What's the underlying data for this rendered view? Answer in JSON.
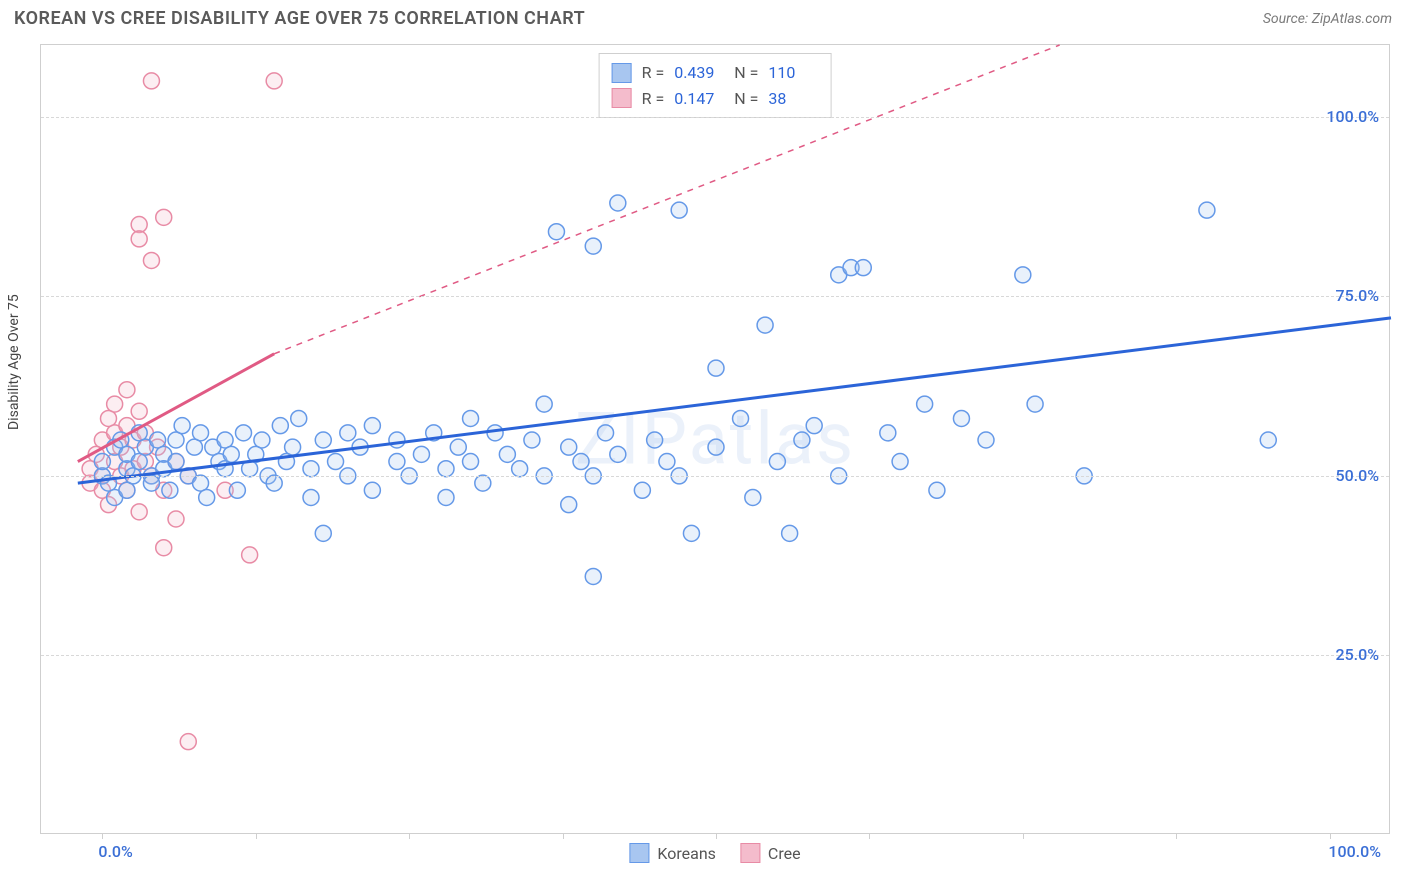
{
  "header": {
    "title": "KOREAN VS CREE DISABILITY AGE OVER 75 CORRELATION CHART",
    "source": "Source: ZipAtlas.com"
  },
  "chart": {
    "type": "scatter",
    "ylabel": "Disability Age Over 75",
    "watermark": "ZIPatlas",
    "background_color": "#ffffff",
    "grid_color": "#d8d8d8",
    "border_color": "#cfcfcf",
    "xlim": [
      -5,
      105
    ],
    "ylim": [
      0,
      110
    ],
    "ytick_labels": [
      "25.0%",
      "50.0%",
      "75.0%",
      "100.0%"
    ],
    "ytick_values": [
      25,
      50,
      75,
      100
    ],
    "xtick_labels": [
      "0.0%",
      "100.0%"
    ],
    "xtick_positions": [
      0,
      100
    ],
    "xtick_marks": [
      0,
      12.5,
      25,
      37.5,
      50,
      62.5,
      75,
      87.5,
      100
    ],
    "marker_radius": 8,
    "marker_stroke_width": 1.5,
    "marker_fill_opacity": 0.25,
    "trend_line_width": 3,
    "dashed_width": 1.5,
    "series": [
      {
        "name": "Koreans",
        "color_stroke": "#6599e8",
        "color_fill": "#a8c6f0",
        "line_color": "#2b64d8",
        "R": "0.439",
        "N": "110",
        "trend": {
          "x1": -2,
          "y1": 49,
          "x2": 105,
          "y2": 72
        },
        "dashed": null,
        "points": [
          [
            0,
            50
          ],
          [
            0,
            52
          ],
          [
            0.5,
            49
          ],
          [
            1,
            54
          ],
          [
            1,
            47
          ],
          [
            1.5,
            55
          ],
          [
            2,
            51
          ],
          [
            2,
            53
          ],
          [
            2,
            48
          ],
          [
            2.5,
            50
          ],
          [
            3,
            56
          ],
          [
            3,
            52
          ],
          [
            3.5,
            54
          ],
          [
            4,
            50
          ],
          [
            4,
            49
          ],
          [
            4.5,
            55
          ],
          [
            5,
            53
          ],
          [
            5,
            51
          ],
          [
            5.5,
            48
          ],
          [
            6,
            55
          ],
          [
            6,
            52
          ],
          [
            6.5,
            57
          ],
          [
            7,
            50
          ],
          [
            7.5,
            54
          ],
          [
            8,
            56
          ],
          [
            8,
            49
          ],
          [
            8.5,
            47
          ],
          [
            9,
            54
          ],
          [
            9.5,
            52
          ],
          [
            10,
            51
          ],
          [
            10,
            55
          ],
          [
            10.5,
            53
          ],
          [
            11,
            48
          ],
          [
            11.5,
            56
          ],
          [
            12,
            51
          ],
          [
            12.5,
            53
          ],
          [
            13,
            55
          ],
          [
            13.5,
            50
          ],
          [
            14,
            49
          ],
          [
            14.5,
            57
          ],
          [
            15,
            52
          ],
          [
            15.5,
            54
          ],
          [
            16,
            58
          ],
          [
            17,
            47
          ],
          [
            17,
            51
          ],
          [
            18,
            55
          ],
          [
            18,
            42
          ],
          [
            19,
            52
          ],
          [
            20,
            56
          ],
          [
            20,
            50
          ],
          [
            21,
            54
          ],
          [
            22,
            48
          ],
          [
            22,
            57
          ],
          [
            24,
            52
          ],
          [
            24,
            55
          ],
          [
            25,
            50
          ],
          [
            26,
            53
          ],
          [
            27,
            56
          ],
          [
            28,
            51
          ],
          [
            28,
            47
          ],
          [
            29,
            54
          ],
          [
            30,
            52
          ],
          [
            30,
            58
          ],
          [
            31,
            49
          ],
          [
            32,
            56
          ],
          [
            33,
            53
          ],
          [
            34,
            51
          ],
          [
            35,
            55
          ],
          [
            36,
            50
          ],
          [
            36,
            60
          ],
          [
            37,
            84
          ],
          [
            38,
            54
          ],
          [
            38,
            46
          ],
          [
            39,
            52
          ],
          [
            40,
            82
          ],
          [
            40,
            36
          ],
          [
            40,
            50
          ],
          [
            41,
            56
          ],
          [
            42,
            88
          ],
          [
            42,
            53
          ],
          [
            44,
            48
          ],
          [
            45,
            55
          ],
          [
            46,
            52
          ],
          [
            47,
            87
          ],
          [
            47,
            50
          ],
          [
            48,
            42
          ],
          [
            50,
            65
          ],
          [
            50,
            54
          ],
          [
            52,
            58
          ],
          [
            53,
            47
          ],
          [
            54,
            71
          ],
          [
            55,
            52
          ],
          [
            56,
            42
          ],
          [
            57,
            55
          ],
          [
            58,
            57
          ],
          [
            60,
            78
          ],
          [
            60,
            50
          ],
          [
            61,
            79
          ],
          [
            62,
            79
          ],
          [
            64,
            56
          ],
          [
            65,
            52
          ],
          [
            67,
            60
          ],
          [
            68,
            48
          ],
          [
            70,
            58
          ],
          [
            72,
            55
          ],
          [
            75,
            78
          ],
          [
            76,
            60
          ],
          [
            80,
            50
          ],
          [
            90,
            87
          ],
          [
            95,
            55
          ]
        ]
      },
      {
        "name": "Cree",
        "color_stroke": "#e88ba5",
        "color_fill": "#f4bccc",
        "line_color": "#e05a84",
        "R": "0.147",
        "N": "38",
        "trend": {
          "x1": -2,
          "y1": 52,
          "x2": 14,
          "y2": 67
        },
        "dashed": {
          "x1": 14,
          "y1": 67,
          "x2": 78,
          "y2": 110
        },
        "points": [
          [
            -1,
            49
          ],
          [
            -1,
            51
          ],
          [
            -0.5,
            53
          ],
          [
            0,
            48
          ],
          [
            0,
            55
          ],
          [
            0,
            50
          ],
          [
            0.5,
            58
          ],
          [
            0.5,
            46
          ],
          [
            1,
            52
          ],
          [
            1,
            56
          ],
          [
            1,
            60
          ],
          [
            1.5,
            50
          ],
          [
            1.5,
            54
          ],
          [
            2,
            57
          ],
          [
            2,
            48
          ],
          [
            2,
            62
          ],
          [
            2.5,
            51
          ],
          [
            2.5,
            55
          ],
          [
            3,
            45
          ],
          [
            3,
            59
          ],
          [
            3,
            85
          ],
          [
            3,
            83
          ],
          [
            3.5,
            52
          ],
          [
            3.5,
            56
          ],
          [
            4,
            50
          ],
          [
            4,
            80
          ],
          [
            4.5,
            54
          ],
          [
            4,
            105
          ],
          [
            5,
            48
          ],
          [
            5,
            40
          ],
          [
            5,
            86
          ],
          [
            6,
            52
          ],
          [
            6,
            44
          ],
          [
            7,
            50
          ],
          [
            7,
            13
          ],
          [
            10,
            48
          ],
          [
            12,
            39
          ],
          [
            14,
            105
          ]
        ]
      }
    ],
    "legend_bottom": [
      {
        "label": "Koreans",
        "fill": "#a8c6f0",
        "stroke": "#6599e8"
      },
      {
        "label": "Cree",
        "fill": "#f4bccc",
        "stroke": "#e88ba5"
      }
    ]
  }
}
